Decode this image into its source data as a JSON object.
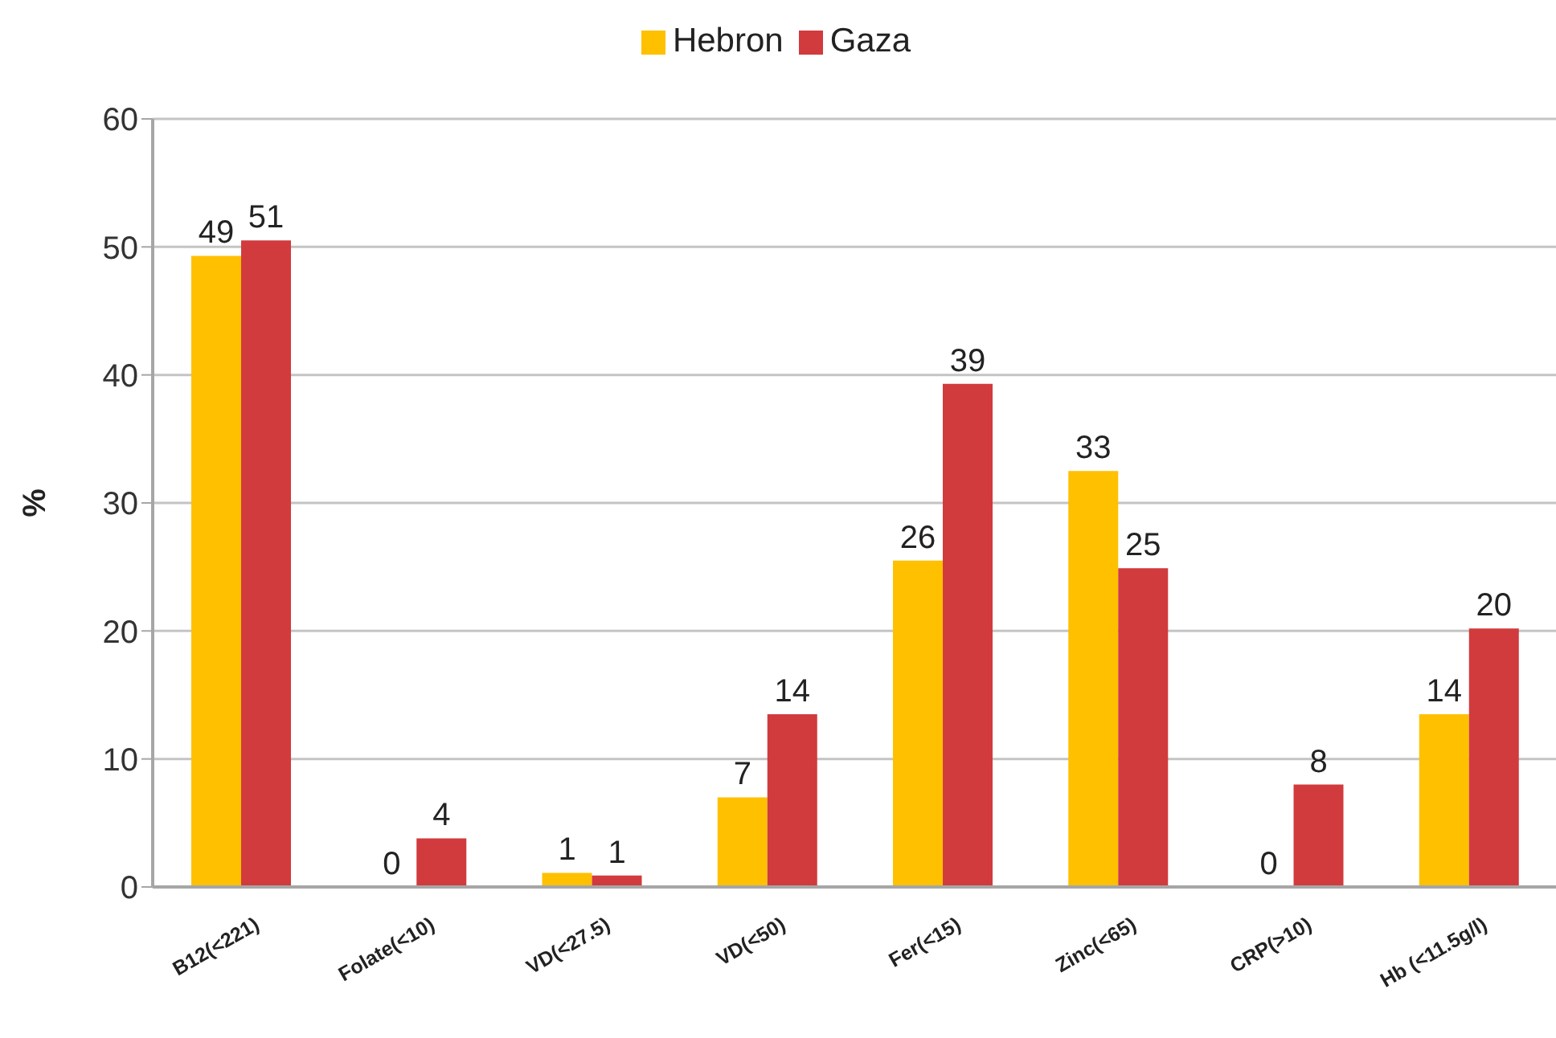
{
  "chart_data": {
    "type": "bar",
    "ylabel": "%",
    "categories": [
      "B12(<221)",
      "Folate(<10)",
      "VD(<27.5)",
      "VD(<50)",
      "Fer(<15)",
      "Zinc(<65)",
      "CRP(>10)",
      "Hb (<11.5g/l)"
    ],
    "series": [
      {
        "name": "Hebron",
        "color": "#ffc000",
        "values": [
          49.3,
          0,
          1.1,
          7,
          25.5,
          32.5,
          0,
          13.5
        ],
        "value_labels": [
          "49",
          "0",
          "1",
          "7",
          "26",
          "33",
          "0",
          "14"
        ]
      },
      {
        "name": "Gaza",
        "color": "#d13b3d",
        "values": [
          50.5,
          3.8,
          0.9,
          13.5,
          39.3,
          24.9,
          8,
          20.2
        ],
        "value_labels": [
          "51",
          "4",
          "1",
          "14",
          "39",
          "25",
          "8",
          "20"
        ]
      }
    ],
    "ylim": [
      0,
      60
    ],
    "yticks": [
      0,
      10,
      20,
      30,
      40,
      50,
      60
    ],
    "grid": "y",
    "legend": "top"
  }
}
